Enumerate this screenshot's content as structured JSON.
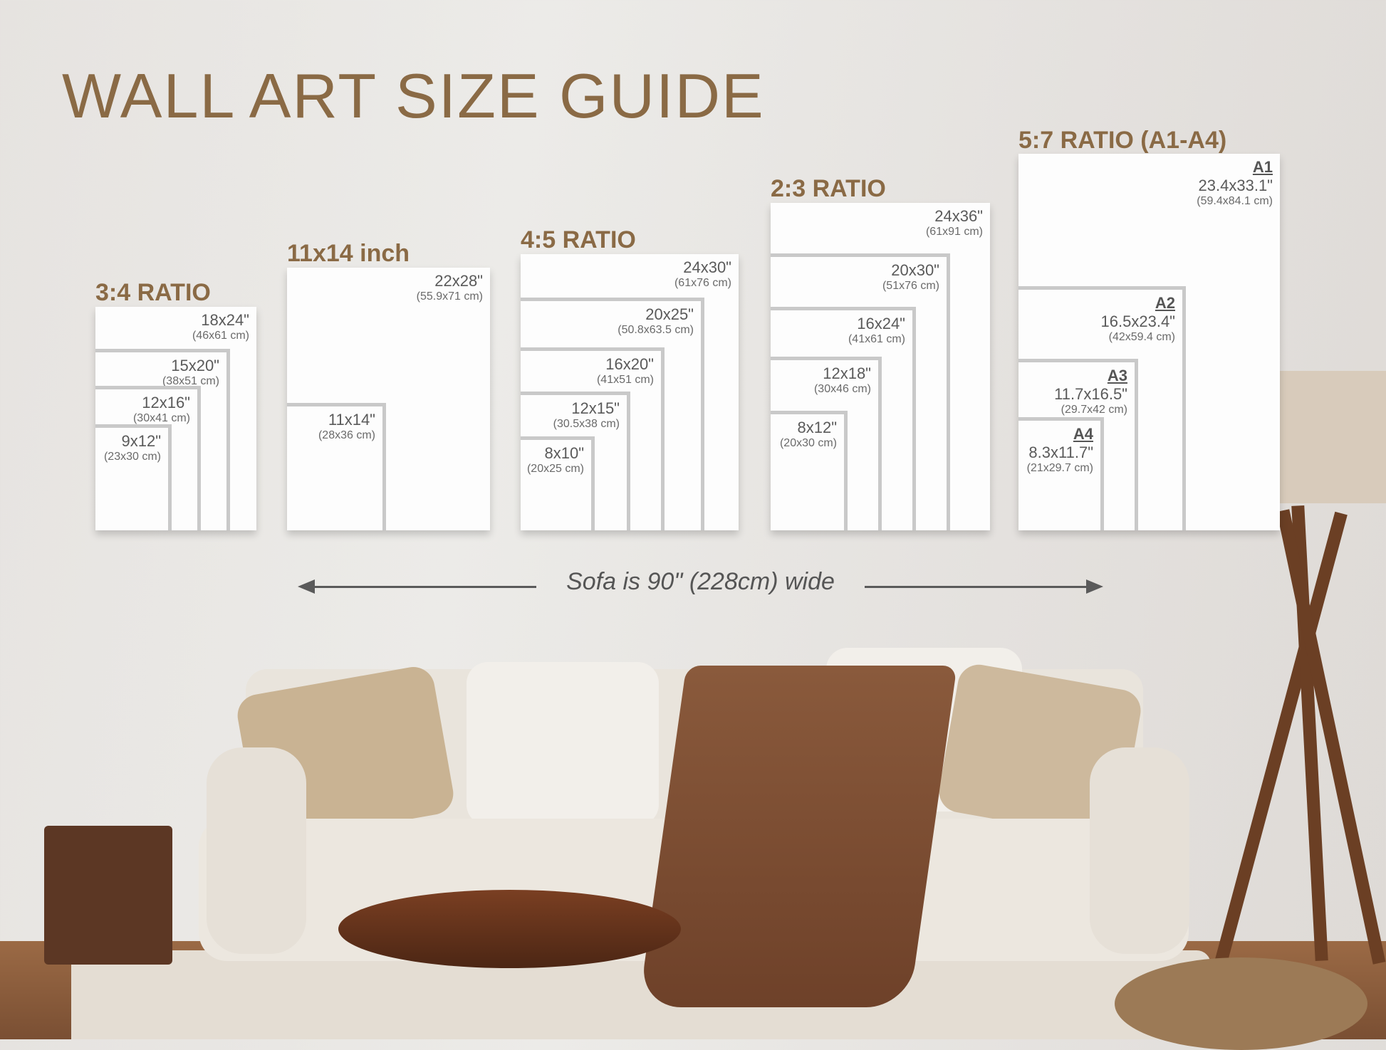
{
  "title": "WALL ART SIZE GUIDE",
  "groups": [
    {
      "label": "3:4 RATIO",
      "sizes": [
        {
          "in": "18x24\"",
          "cm": "(46x61 cm)"
        },
        {
          "in": "15x20\"",
          "cm": "(38x51 cm)"
        },
        {
          "in": "12x16\"",
          "cm": "(30x41 cm)"
        },
        {
          "in": "9x12\"",
          "cm": "(23x30 cm)"
        }
      ]
    },
    {
      "label": "11x14 inch",
      "sizes": [
        {
          "in": "22x28\"",
          "cm": "(55.9x71 cm)"
        },
        {
          "in": "11x14\"",
          "cm": "(28x36 cm)"
        }
      ]
    },
    {
      "label": "4:5 RATIO",
      "sizes": [
        {
          "in": "24x30\"",
          "cm": "(61x76 cm)"
        },
        {
          "in": "20x25\"",
          "cm": "(50.8x63.5 cm)"
        },
        {
          "in": "16x20\"",
          "cm": "(41x51 cm)"
        },
        {
          "in": "12x15\"",
          "cm": "(30.5x38 cm)"
        },
        {
          "in": "8x10\"",
          "cm": "(20x25 cm)"
        }
      ]
    },
    {
      "label": "2:3 RATIO",
      "sizes": [
        {
          "in": "24x36\"",
          "cm": "(61x91 cm)"
        },
        {
          "in": "20x30\"",
          "cm": "(51x76 cm)"
        },
        {
          "in": "16x24\"",
          "cm": "(41x61 cm)"
        },
        {
          "in": "12x18\"",
          "cm": "(30x46 cm)"
        },
        {
          "in": "8x12\"",
          "cm": "(20x30 cm)"
        }
      ]
    },
    {
      "label": "5:7 RATIO (A1-A4)",
      "sizes": [
        {
          "a": "A1",
          "in": "23.4x33.1\"",
          "cm": "(59.4x84.1 cm)"
        },
        {
          "a": "A2",
          "in": "16.5x23.4\"",
          "cm": "(42x59.4 cm)"
        },
        {
          "a": "A3",
          "in": "11.7x16.5\"",
          "cm": "(29.7x42 cm)"
        },
        {
          "a": "A4",
          "in": "8.3x11.7\"",
          "cm": "(21x29.7 cm)"
        }
      ]
    }
  ],
  "sofa_note": "Sofa is 90\" (228cm) wide",
  "colors": {
    "heading": "#8a6a45",
    "frame_border": "#c9c9c9",
    "text": "#5a5a5a"
  }
}
